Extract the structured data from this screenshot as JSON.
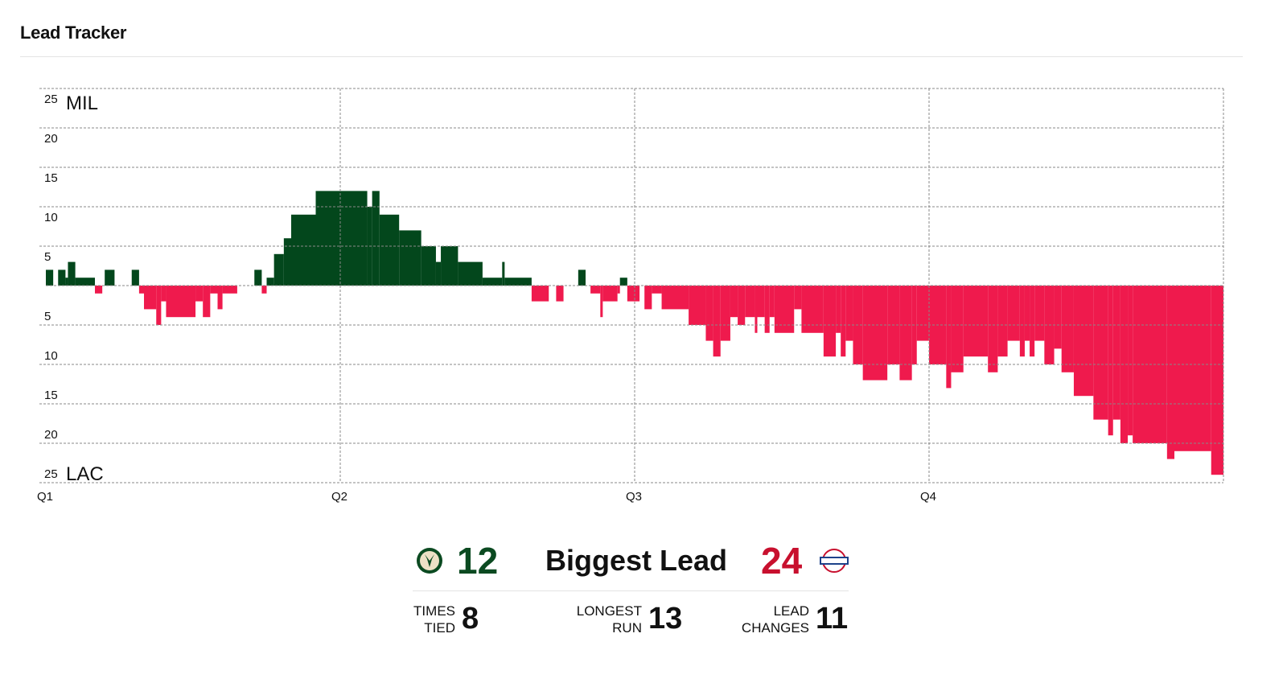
{
  "header": {
    "title": "Lead Tracker"
  },
  "chart_data": {
    "type": "step",
    "team_top": "MIL",
    "team_bottom": "LAC",
    "colors": {
      "top": "#03471c",
      "bottom": "#ef1a4d"
    },
    "xlim": [
      0,
      48
    ],
    "xticks": [
      {
        "value": 0,
        "label": "Q1"
      },
      {
        "value": 12,
        "label": "Q2"
      },
      {
        "value": 24,
        "label": "Q3"
      },
      {
        "value": 36,
        "label": "Q4"
      }
    ],
    "ylim": [
      -25,
      25
    ],
    "yticks": [
      {
        "value": 25,
        "label": "25"
      },
      {
        "value": 20,
        "label": "20"
      },
      {
        "value": 15,
        "label": "15"
      },
      {
        "value": 10,
        "label": "10"
      },
      {
        "value": 5,
        "label": "5"
      },
      {
        "value": -5,
        "label": "5"
      },
      {
        "value": -10,
        "label": "10"
      },
      {
        "value": -15,
        "label": "15"
      },
      {
        "value": -20,
        "label": "20"
      },
      {
        "value": -25,
        "label": "25"
      }
    ],
    "grid": true,
    "x": [
      0,
      0.3,
      0.5,
      0.8,
      0.9,
      1.2,
      2.0,
      2.3,
      2.4,
      2.8,
      3.5,
      3.8,
      4.0,
      4.5,
      4.7,
      4.9,
      6.1,
      6.4,
      6.7,
      7.0,
      7.2,
      7.8,
      8.5,
      8.8,
      9.0,
      9.3,
      9.7,
      10.0,
      11.0,
      13.1,
      13.3,
      13.6,
      14.4,
      15.3,
      15.9,
      16.1,
      16.8,
      17.8,
      18.6,
      18.7,
      19.8,
      20.5,
      20.8,
      21.1,
      21.7,
      22.0,
      22.2,
      22.6,
      22.7,
      23.3,
      23.4,
      23.7,
      24.2,
      24.4,
      24.7,
      25.1,
      26.2,
      26.9,
      27.2,
      27.5,
      27.9,
      28.2,
      28.5,
      28.9,
      29.0,
      29.3,
      29.5,
      29.7,
      30.5,
      30.8,
      31.7,
      32.2,
      32.4,
      32.6,
      32.9,
      33.3,
      34.3,
      34.8,
      35.3,
      35.5,
      36.0,
      36.7,
      36.9,
      37.4,
      38.4,
      38.8,
      39.2,
      39.7,
      39.9,
      40.1,
      40.3,
      40.7,
      41.1,
      41.4,
      41.9,
      42.7,
      43.3,
      43.5,
      43.8,
      44.1,
      44.3,
      45.7,
      46.0,
      47.5
    ],
    "values": [
      2,
      0,
      2,
      1,
      3,
      1,
      -1,
      0,
      2,
      0,
      2,
      -1,
      -3,
      -5,
      -2,
      -4,
      -2,
      -4,
      -1,
      -3,
      -1,
      0,
      2,
      -1,
      1,
      4,
      6,
      9,
      12,
      10,
      12,
      9,
      7,
      5,
      3,
      5,
      3,
      1,
      3,
      1,
      -2,
      0,
      -2,
      0,
      2,
      0,
      -1,
      -4,
      -2,
      -1,
      1,
      -2,
      0,
      -3,
      -1,
      -3,
      -5,
      -7,
      -9,
      -7,
      -4,
      -5,
      -4,
      -6,
      -4,
      -6,
      -4,
      -6,
      -3,
      -6,
      -9,
      -6,
      -9,
      -7,
      -10,
      -12,
      -10,
      -12,
      -10,
      -7,
      -10,
      -13,
      -11,
      -9,
      -11,
      -9,
      -7,
      -9,
      -7,
      -9,
      -7,
      -10,
      -8,
      -11,
      -14,
      -17,
      -19,
      -17,
      -20,
      -19,
      -20,
      -22,
      -21,
      -24
    ]
  },
  "stats": {
    "biggest_lead_label": "Biggest Lead",
    "biggest_lead_top": 12,
    "biggest_lead_bottom": 24,
    "times_tied_label": "TIMES TIED",
    "times_tied": 8,
    "longest_run_label": "LONGEST RUN",
    "longest_run": 13,
    "lead_changes_label": "LEAD CHANGES",
    "lead_changes": 11
  }
}
